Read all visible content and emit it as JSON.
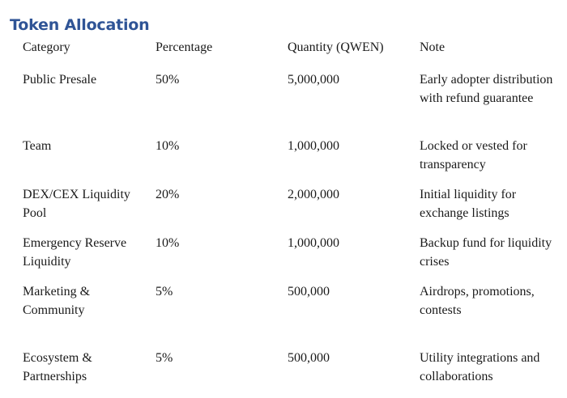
{
  "heading": "Token Allocation",
  "columns": [
    "Category",
    "Percentage",
    "Quantity (QWEN)",
    "Note"
  ],
  "rows": [
    {
      "category": "Public Presale",
      "percentage": "50%",
      "quantity": "5,000,000",
      "note": "Early adopter distribution with refund guarantee"
    },
    {
      "category": "Team",
      "percentage": "10%",
      "quantity": "1,000,000",
      "note": "Locked or vested for transparency"
    },
    {
      "category": "DEX/CEX Liquidity Pool",
      "percentage": "20%",
      "quantity": "2,000,000",
      "note": "Initial liquidity for exchange listings"
    },
    {
      "category": "Emergency Reserve Liquidity",
      "percentage": "10%",
      "quantity": "1,000,000",
      "note": "Backup fund for liquidity crises"
    },
    {
      "category": "Marketing & Community",
      "percentage": "5%",
      "quantity": "500,000",
      "note": "Airdrops, promotions, contests"
    },
    {
      "category": "Ecosystem & Partnerships",
      "percentage": "5%",
      "quantity": "500,000",
      "note": "Utility integrations and collaborations"
    }
  ]
}
